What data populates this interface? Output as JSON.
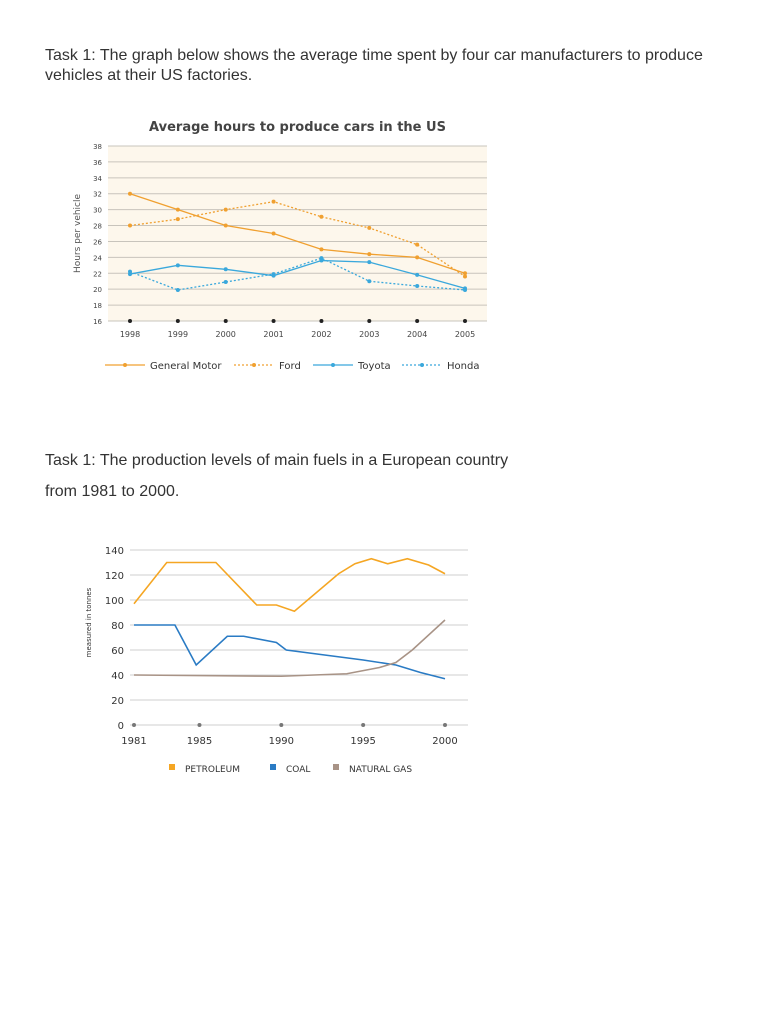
{
  "task1": {
    "line1": "Task 1: The graph below shows the average time spent by four car manufacturers to produce",
    "line2": "vehicles at their US factories."
  },
  "task2": {
    "line1": "Task 1: The production levels of main fuels in a European country",
    "line2": "from 1981 to 2000."
  },
  "chart_data": [
    {
      "type": "line",
      "title": "Average hours to produce cars in the US",
      "xlabel": "",
      "ylabel": "Hours per vehicle",
      "x": [
        1998,
        1999,
        2000,
        2001,
        2002,
        2003,
        2004,
        2005
      ],
      "yticks": [
        16,
        18,
        20,
        22,
        24,
        26,
        28,
        30,
        32,
        34,
        36,
        38
      ],
      "ylim": [
        16,
        38
      ],
      "grid": true,
      "legend": "bottom",
      "series": [
        {
          "name": "General Motor",
          "color": "#f0a030",
          "dash": false,
          "values": [
            32,
            30,
            28,
            27,
            25,
            24.4,
            24,
            22
          ]
        },
        {
          "name": "Ford",
          "color": "#f0a030",
          "dash": true,
          "values": [
            28,
            28.8,
            30,
            31,
            29.1,
            27.7,
            25.6,
            21.6
          ]
        },
        {
          "name": "Toyota",
          "color": "#3aa8dc",
          "dash": false,
          "values": [
            21.9,
            23,
            22.5,
            21.7,
            23.6,
            23.4,
            21.8,
            20.1
          ]
        },
        {
          "name": "Honda",
          "color": "#3aa8dc",
          "dash": true,
          "values": [
            22.2,
            19.9,
            20.9,
            21.9,
            23.9,
            21,
            20.4,
            19.9
          ]
        }
      ]
    },
    {
      "type": "line",
      "title": "",
      "xlabel": "",
      "ylabel": "measured in tonnes",
      "xticks": [
        1981,
        1985,
        1990,
        1995,
        2000
      ],
      "yticks": [
        0,
        20,
        40,
        60,
        80,
        100,
        120,
        140
      ],
      "ylim": [
        0,
        140
      ],
      "grid": true,
      "legend": "bottom",
      "series": [
        {
          "name": "PETROLEUM",
          "color": "#f5a623",
          "points": [
            [
              1981,
              97
            ],
            [
              1983,
              130
            ],
            [
              1986,
              130
            ],
            [
              1988.5,
              96
            ],
            [
              1989.7,
              96
            ],
            [
              1990.8,
              91
            ],
            [
              1993.5,
              121
            ],
            [
              1994.5,
              129
            ],
            [
              1995.5,
              133
            ],
            [
              1996.5,
              129
            ],
            [
              1997.7,
              133
            ],
            [
              1999,
              128
            ],
            [
              2000,
              121
            ]
          ]
        },
        {
          "name": "COAL",
          "color": "#2a7bc4",
          "points": [
            [
              1981,
              80
            ],
            [
              1983.5,
              80
            ],
            [
              1984.8,
              48
            ],
            [
              1986.7,
              71
            ],
            [
              1987.7,
              71
            ],
            [
              1989.7,
              66
            ],
            [
              1990.3,
              60
            ],
            [
              1995,
              52
            ],
            [
              1997,
              48
            ],
            [
              1998.5,
              42
            ],
            [
              2000,
              37
            ]
          ]
        },
        {
          "name": "NATURAL GAS",
          "color": "#a89386",
          "points": [
            [
              1981,
              40
            ],
            [
              1990,
              39
            ],
            [
              1994,
              41
            ],
            [
              1996,
              46
            ],
            [
              1997,
              50
            ],
            [
              1998,
              60
            ],
            [
              2000,
              84
            ]
          ]
        }
      ]
    }
  ]
}
